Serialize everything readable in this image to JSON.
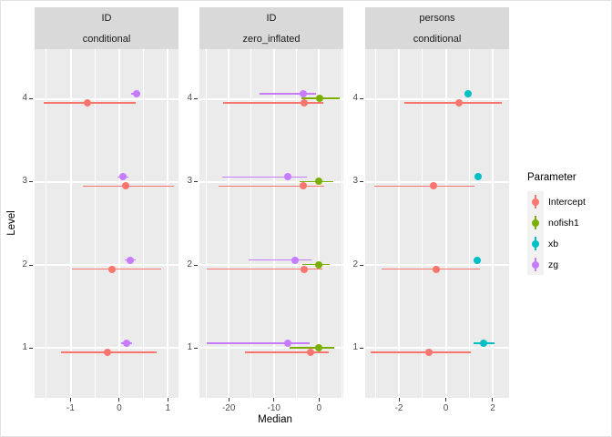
{
  "figure": {
    "ylabel": "Level",
    "xlabel": "Median"
  },
  "legend": {
    "title": "Parameter",
    "entries": [
      {
        "label": "Intercept",
        "color": "#F8766D"
      },
      {
        "label": "nofish1",
        "color": "#7CAE00"
      },
      {
        "label": "xb",
        "color": "#00BFC4"
      },
      {
        "label": "zg",
        "color": "#C77CFF"
      }
    ]
  },
  "colors": {
    "panel_bg": "#EBEBEB",
    "strip_bg": "#D9D9D9",
    "grid": "#FFFFFF",
    "tick_mark": "#333333",
    "tick_label": "#4D4D4D",
    "strip_text": "#1A1A1A",
    "legend_key_bg": "#F2F2F2"
  },
  "chart_data": {
    "type": "pointrange",
    "orientation": "horizontal",
    "title": "",
    "xlabel": "Median",
    "ylabel": "Level",
    "legend_title": "Parameter",
    "legend_position": "right",
    "grid": "on",
    "y_levels": [
      1,
      2,
      3,
      4
    ],
    "facets": [
      {
        "strip": [
          "ID",
          "conditional"
        ],
        "x_range": [
          -1.74,
          1.22
        ],
        "x_ticks": [
          -1,
          0,
          1
        ],
        "x_labels": [
          "-1",
          "0",
          "1"
        ],
        "x_minor": [
          -1.5,
          -0.5,
          0.5
        ],
        "series": [
          {
            "name": "Intercept",
            "points": [
              {
                "level": 4,
                "median": -0.66,
                "lo": -1.56,
                "hi": 0.34
              },
              {
                "level": 3,
                "median": 0.13,
                "lo": -0.75,
                "hi": 1.13
              },
              {
                "level": 2,
                "median": -0.14,
                "lo": -0.98,
                "hi": 0.86
              },
              {
                "level": 1,
                "median": -0.24,
                "lo": -1.19,
                "hi": 0.77
              }
            ]
          },
          {
            "name": "zg",
            "points": [
              {
                "level": 4,
                "median": 0.36,
                "lo": 0.25,
                "hi": 0.44
              },
              {
                "level": 3,
                "median": 0.08,
                "lo": -0.03,
                "hi": 0.19
              },
              {
                "level": 2,
                "median": 0.23,
                "lo": 0.12,
                "hi": 0.34
              },
              {
                "level": 1,
                "median": 0.15,
                "lo": 0.04,
                "hi": 0.26
              }
            ]
          }
        ]
      },
      {
        "strip": [
          "ID",
          "zero_inflated"
        ],
        "x_range": [
          -26.5,
          5.4
        ],
        "x_ticks": [
          -20,
          -10,
          0
        ],
        "x_labels": [
          "-20",
          "-10",
          "0"
        ],
        "x_minor": [
          -25,
          -15,
          -5,
          5
        ],
        "series": [
          {
            "name": "Intercept",
            "points": [
              {
                "level": 4,
                "median": -3.3,
                "lo": -21.3,
                "hi": 1.0
              },
              {
                "level": 3,
                "median": -3.4,
                "lo": -22.3,
                "hi": 1.2
              },
              {
                "level": 2,
                "median": -3.3,
                "lo": -24.9,
                "hi": 0.7
              },
              {
                "level": 1,
                "median": -1.8,
                "lo": -16.4,
                "hi": 2.2
              }
            ]
          },
          {
            "name": "nofish1",
            "points": [
              {
                "level": 4,
                "median": 0.1,
                "lo": -3.9,
                "hi": 4.5
              },
              {
                "level": 3,
                "median": 0.0,
                "lo": -4.3,
                "hi": 3.1
              },
              {
                "level": 2,
                "median": -0.1,
                "lo": -3.7,
                "hi": 2.3
              },
              {
                "level": 1,
                "median": 0.0,
                "lo": -6.5,
                "hi": 3.4
              }
            ]
          },
          {
            "name": "zg",
            "points": [
              {
                "level": 4,
                "median": -3.5,
                "lo": -13.2,
                "hi": -0.7
              },
              {
                "level": 3,
                "median": -7.0,
                "lo": -21.5,
                "hi": -2.7
              },
              {
                "level": 2,
                "median": -5.2,
                "lo": -15.6,
                "hi": -1.7
              },
              {
                "level": 1,
                "median": -7.0,
                "lo": -24.8,
                "hi": -2.1
              }
            ]
          }
        ]
      },
      {
        "strip": [
          "persons",
          "conditional"
        ],
        "x_range": [
          -3.44,
          2.7
        ],
        "x_ticks": [
          -2,
          0,
          2
        ],
        "x_labels": [
          "-2",
          "0",
          "2"
        ],
        "x_minor": [
          -3,
          -1,
          1
        ],
        "series": [
          {
            "name": "Intercept",
            "points": [
              {
                "level": 4,
                "median": 0.57,
                "lo": -1.78,
                "hi": 2.39
              },
              {
                "level": 3,
                "median": -0.52,
                "lo": -3.05,
                "hi": 1.24
              },
              {
                "level": 2,
                "median": -0.4,
                "lo": -2.75,
                "hi": 1.46
              },
              {
                "level": 1,
                "median": -0.72,
                "lo": -3.2,
                "hi": 1.07
              }
            ]
          },
          {
            "name": "xb",
            "points": [
              {
                "level": 4,
                "median": 0.95,
                "lo": 0.85,
                "hi": 1.05
              },
              {
                "level": 3,
                "median": 1.37,
                "lo": 1.25,
                "hi": 1.5
              },
              {
                "level": 2,
                "median": 1.33,
                "lo": 1.18,
                "hi": 1.48
              },
              {
                "level": 1,
                "median": 1.62,
                "lo": 1.2,
                "hi": 2.07
              }
            ]
          }
        ]
      }
    ]
  }
}
